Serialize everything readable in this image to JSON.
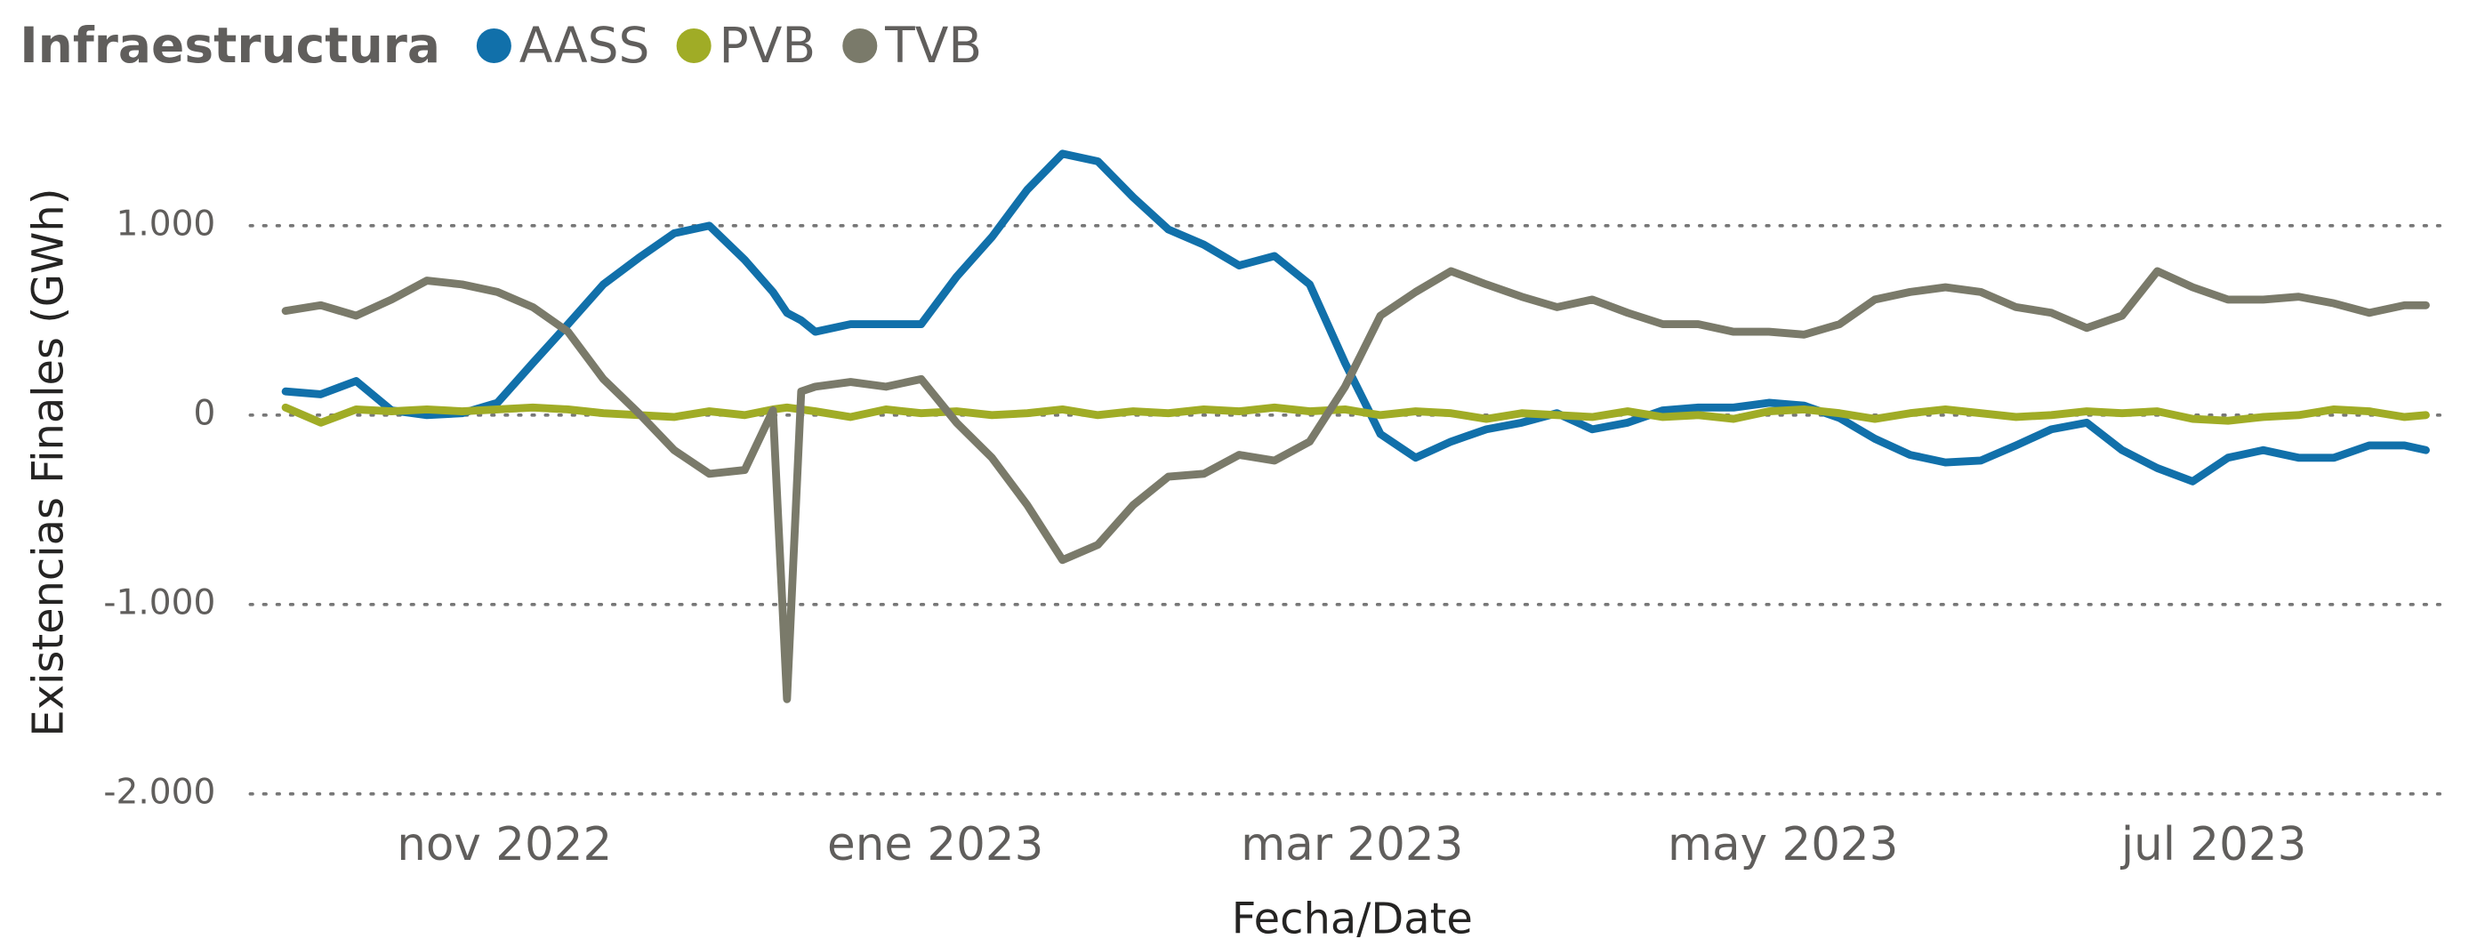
{
  "chart_data": {
    "type": "line",
    "legend_title": "Infraestructura",
    "y_label": "Existencias Finales (GWh)",
    "x_label": "Fecha/Date",
    "x": [
      0,
      5,
      10,
      15,
      20,
      25,
      30,
      35,
      40,
      45,
      50,
      55,
      60,
      65,
      69,
      71,
      73,
      75,
      80,
      85,
      90,
      95,
      100,
      105,
      110,
      115,
      120,
      125,
      130,
      135,
      140,
      145,
      150,
      155,
      160,
      165,
      170,
      175,
      180,
      185,
      190,
      195,
      200,
      205,
      210,
      215,
      220,
      225,
      230,
      235,
      240,
      245,
      250,
      255,
      260,
      265,
      270,
      275,
      280,
      285,
      290,
      295,
      300,
      303
    ],
    "xlim": [
      -5,
      305
    ],
    "xticks": [
      {
        "value": 31,
        "label": "nov 2022"
      },
      {
        "value": 92,
        "label": "ene 2023"
      },
      {
        "value": 151,
        "label": "mar 2023"
      },
      {
        "value": 212,
        "label": "may 2023"
      },
      {
        "value": 273,
        "label": "jul 2023"
      }
    ],
    "ylim": [
      -2000,
      1500
    ],
    "yticks": [
      {
        "value": -2000,
        "label": "-2.000"
      },
      {
        "value": -1000,
        "label": "-1.000"
      },
      0,
      {
        "value": 1000,
        "label": "1.000"
      }
    ],
    "grid": true,
    "legend": "top-left",
    "series": [
      {
        "name": "AASS",
        "color": "#1170aa",
        "values": [
          125,
          110,
          180,
          25,
          0,
          10,
          65,
          275,
          480,
          690,
          830,
          960,
          1000,
          820,
          650,
          540,
          500,
          440,
          480,
          480,
          480,
          730,
          940,
          1190,
          1380,
          1340,
          1150,
          980,
          900,
          790,
          840,
          690,
          275,
          -100,
          -225,
          -140,
          -75,
          -40,
          10,
          -75,
          -40,
          25,
          40,
          40,
          65,
          50,
          -15,
          -125,
          -210,
          -250,
          -240,
          -160,
          -75,
          -40,
          -185,
          -280,
          -350,
          -225,
          -185,
          -225,
          -225,
          -160,
          -160,
          -185
        ]
      },
      {
        "name": "PVB",
        "color": "#a0ac26",
        "values": [
          40,
          -40,
          30,
          20,
          30,
          20,
          30,
          40,
          30,
          10,
          0,
          -10,
          20,
          0,
          30,
          40,
          30,
          20,
          -10,
          30,
          10,
          20,
          0,
          10,
          30,
          0,
          20,
          10,
          30,
          20,
          40,
          20,
          30,
          0,
          20,
          10,
          -20,
          10,
          0,
          -10,
          20,
          -10,
          0,
          -20,
          20,
          30,
          10,
          -20,
          10,
          30,
          10,
          -10,
          0,
          20,
          10,
          20,
          -20,
          -30,
          -10,
          0,
          30,
          20,
          -10,
          0
        ]
      },
      {
        "name": "TVB",
        "color": "#7a7a6a",
        "values": [
          550,
          580,
          525,
          610,
          710,
          690,
          650,
          570,
          440,
          190,
          10,
          -185,
          -310,
          -290,
          25,
          -1500,
          125,
          150,
          175,
          150,
          190,
          -40,
          -225,
          -475,
          -765,
          -685,
          -475,
          -325,
          -310,
          -210,
          -240,
          -140,
          150,
          525,
          650,
          760,
          690,
          625,
          570,
          610,
          540,
          480,
          480,
          440,
          440,
          425,
          480,
          610,
          650,
          675,
          650,
          570,
          540,
          460,
          525,
          760,
          675,
          610,
          610,
          625,
          590,
          540,
          580,
          580
        ]
      }
    ]
  }
}
